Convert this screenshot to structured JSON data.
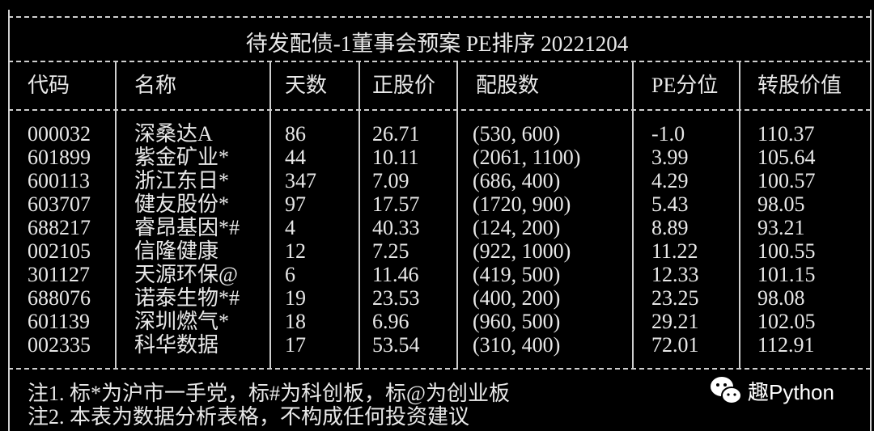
{
  "title": "待发配债-1董事会预案 PE排序 20221204",
  "headers": [
    "代码",
    "名称",
    "天数",
    "正股价",
    "配股数",
    "PE分位",
    "转股价值"
  ],
  "rows": [
    [
      "000032",
      "深桑达A",
      "86",
      "26.71",
      "(530, 600)",
      "-1.0",
      "110.37"
    ],
    [
      "601899",
      "紫金矿业*",
      "44",
      "10.11",
      "(2061, 1100)",
      "3.99",
      "105.64"
    ],
    [
      "600113",
      "浙江东日*",
      "347",
      "7.09",
      "(686, 400)",
      "4.29",
      "100.57"
    ],
    [
      "603707",
      "健友股份*",
      "97",
      "17.57",
      "(1720, 900)",
      "5.43",
      "98.05"
    ],
    [
      "688217",
      "睿昂基因*#",
      "4",
      "40.33",
      "(124, 200)",
      "8.89",
      "93.21"
    ],
    [
      "002105",
      "信隆健康",
      "12",
      "7.25",
      "(922, 1000)",
      "11.22",
      "100.55"
    ],
    [
      "301127",
      "天源环保@",
      "6",
      "11.46",
      "(419, 500)",
      "12.33",
      "101.15"
    ],
    [
      "688076",
      "诺泰生物*#",
      "19",
      "23.53",
      "(400, 200)",
      "23.25",
      "98.08"
    ],
    [
      "601139",
      "深圳燃气*",
      "18",
      "6.96",
      "(960, 500)",
      "29.21",
      "102.05"
    ],
    [
      "002335",
      "科华数据",
      "17",
      "53.54",
      "(310, 400)",
      "72.01",
      "112.91"
    ]
  ],
  "notes": [
    "注1. 标*为沪市一手党，标#为科创板，标@为创业板",
    "注2. 本表为数据分析表格，不构成任何投资建议"
  ],
  "watermark": {
    "icon": "wechat-icon",
    "text": "趣Python"
  }
}
